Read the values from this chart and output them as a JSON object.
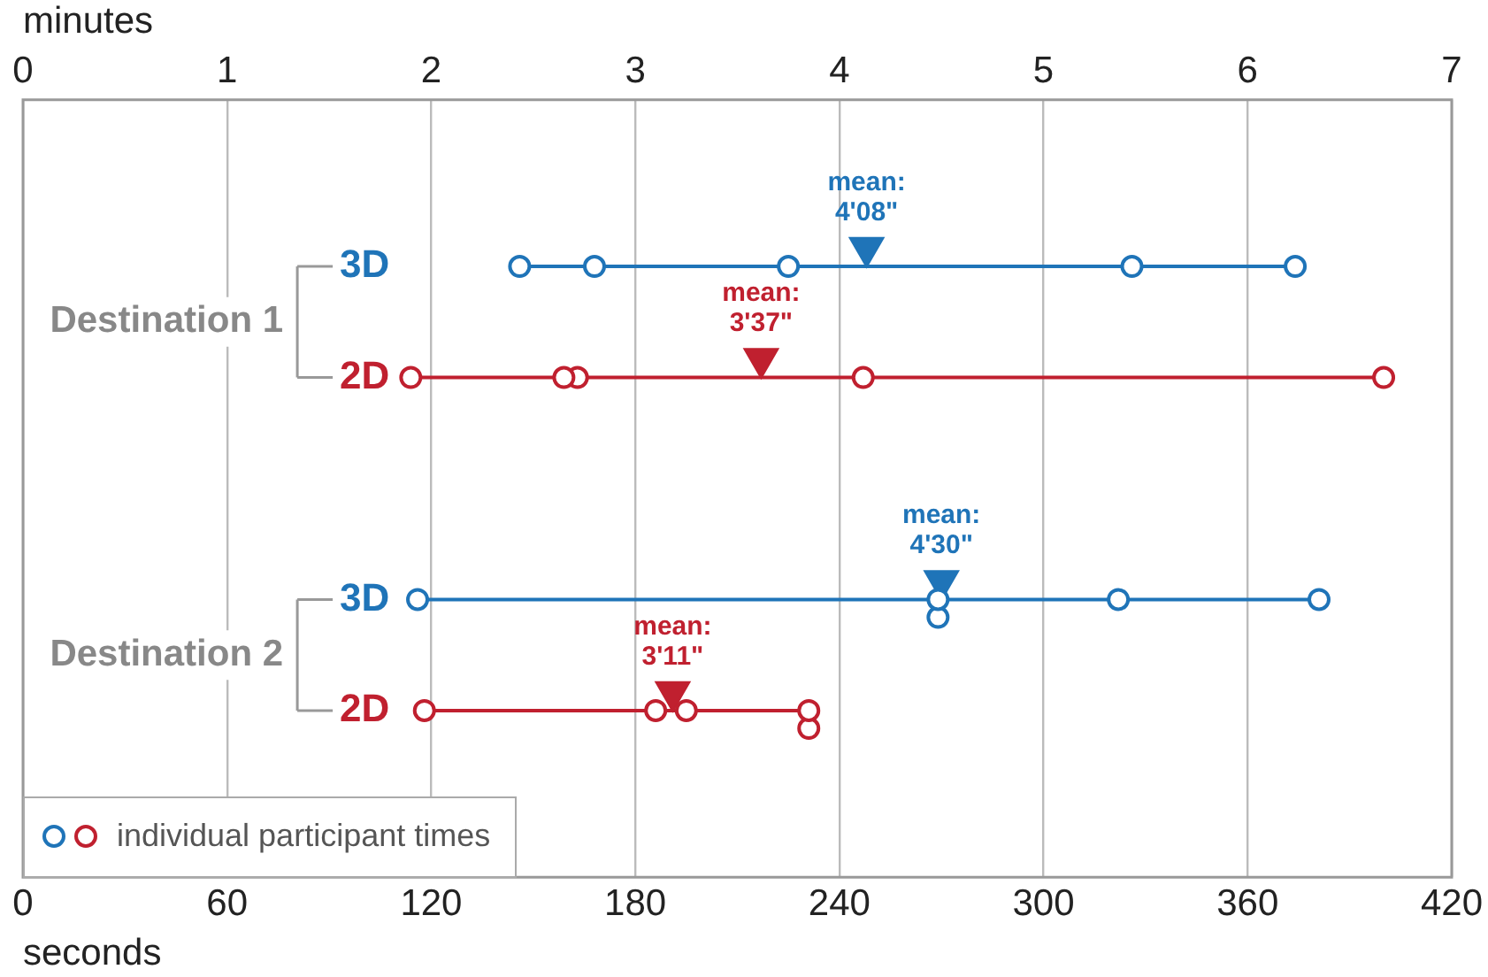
{
  "chart_data": {
    "type": "scatter",
    "orientation": "horizontal",
    "categories": [
      null,
      "3D",
      "2D",
      null,
      "3D",
      "2D",
      null
    ],
    "xlabel": "seconds",
    "x2label": "minutes",
    "xlim": [
      0,
      420
    ],
    "xticks": [
      0,
      60,
      120,
      180,
      240,
      300,
      360,
      420
    ],
    "x2lim": [
      0,
      7
    ],
    "x2ticks": [
      0,
      1,
      2,
      3,
      4,
      5,
      6,
      7
    ],
    "grid": "x",
    "marker": "circle",
    "legend": "bottom left",
    "annotations": [
      "Destination 1",
      "Destination 2"
    ],
    "series": [
      {
        "name": "individual participant times",
        "colors": [
          null,
          "#1f74b8",
          "#c0202f",
          null,
          "#1f74b8",
          "#c0202f",
          null
        ],
        "values": [
          null,
          146,
          114,
          null,
          116,
          118,
          null
        ]
      },
      {
        "colors": [
          null,
          "#1f74b8",
          "#c0202f",
          null,
          "#1f74b8",
          "#c0202f",
          null
        ],
        "values": [
          null,
          168,
          159,
          null,
          269,
          186,
          null
        ]
      },
      {
        "colors": [
          null,
          "#1f74b8",
          "#c0202f",
          null,
          "#1f74b8",
          "#c0202f",
          null
        ],
        "values": [
          null,
          225,
          163,
          null,
          269,
          195,
          null
        ]
      },
      {
        "colors": [
          null,
          "#1f74b8",
          "#c0202f",
          null,
          "#1f74b8",
          "#c0202f",
          null
        ],
        "values": [
          null,
          326,
          247,
          null,
          322,
          231,
          null
        ]
      },
      {
        "colors": [
          null,
          "#1f74b8",
          "#c0202f",
          null,
          "#1f74b8",
          "#c0202f",
          null
        ],
        "values": [
          null,
          374,
          400,
          null,
          381,
          231,
          null
        ]
      },
      {
        "type": "scatter",
        "marker": "triangle",
        "colors": [
          null,
          "#1f74b8",
          "#c0202f",
          null,
          "#1f74b8",
          "#c0202f",
          null
        ],
        "values": [
          null,
          248,
          217,
          null,
          270,
          191,
          null
        ],
        "value_labels": [
          null,
          "mean:\n4'08\"",
          "mean:\n3'37\"",
          null,
          "mean:\n4'30\"",
          "mean:\n3'11\"",
          null
        ]
      }
    ]
  }
}
